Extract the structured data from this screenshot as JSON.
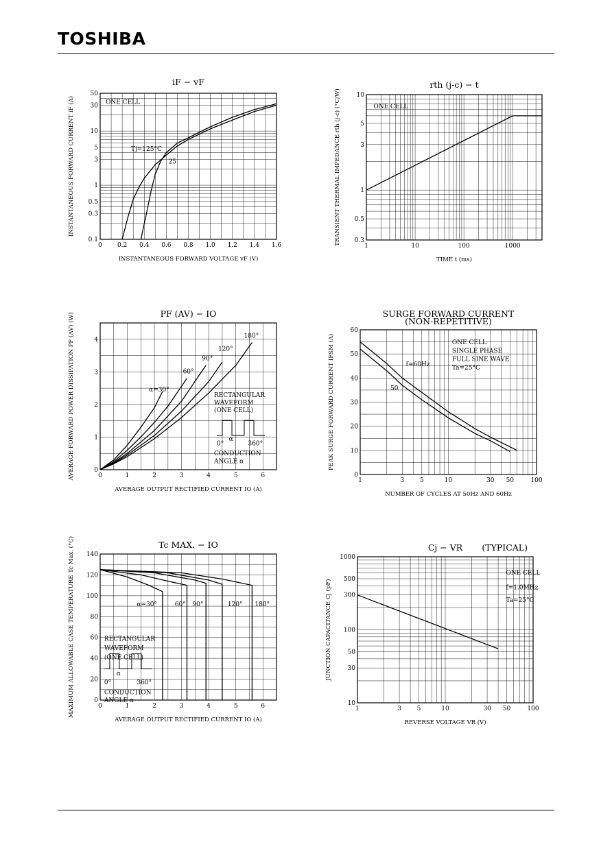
{
  "header": {
    "logo": "TOSHIBA"
  },
  "colors": {
    "ink": "#000000",
    "background": "#ffffff"
  },
  "chart_data": [
    {
      "id": "if-vf",
      "type": "line",
      "title": "iF − vF",
      "xlabel": "INSTANTANEOUS FORWARD VOLTAGE vF (V)",
      "ylabel": "INSTANTANEOUS FORWARD CURRENT iF (A)",
      "xlim": [
        0,
        1.6
      ],
      "ylim": [
        0.1,
        50
      ],
      "xscale": "linear",
      "yscale": "log",
      "xticks": [
        "0",
        "0.2",
        "0.4",
        "0.6",
        "0.8",
        "1.0",
        "1.2",
        "1.4",
        "1.6"
      ],
      "yticks": [
        "50",
        "30",
        "10",
        "5",
        "3",
        "1",
        "0.5",
        "0.3",
        "0.1"
      ],
      "grid": true,
      "annotations": [
        "ONE CELL",
        "Tj=125°C",
        "25"
      ],
      "series": [
        {
          "name": "Tj=125°C",
          "x": [
            0.2,
            0.25,
            0.3,
            0.35,
            0.4,
            0.5,
            0.6,
            0.7,
            0.8,
            1.0,
            1.2,
            1.4,
            1.6
          ],
          "y": [
            0.1,
            0.25,
            0.55,
            0.9,
            1.35,
            2.4,
            3.6,
            5.3,
            7.0,
            11,
            16,
            23,
            30
          ]
        },
        {
          "name": "25",
          "x": [
            0.37,
            0.42,
            0.46,
            0.5,
            0.55,
            0.6,
            0.7,
            0.8,
            1.0,
            1.2,
            1.4,
            1.6
          ],
          "y": [
            0.1,
            0.3,
            0.75,
            1.6,
            2.8,
            4.0,
            6.0,
            7.5,
            12,
            18,
            25,
            32
          ]
        }
      ]
    },
    {
      "id": "rth-t",
      "type": "line",
      "title": "rth (j-c) − t",
      "xlabel": "TIME t (ms)",
      "ylabel": "TRANSIENT THERMAL IMPEDANCE rth (j-c) (°C/W)",
      "xlim": [
        1,
        4000
      ],
      "ylim": [
        0.3,
        10
      ],
      "xscale": "log",
      "yscale": "log",
      "xticks": [
        "1",
        "10",
        "100",
        "1000"
      ],
      "yticks": [
        "10",
        "5",
        "3",
        "1",
        "0.5",
        "0.3"
      ],
      "grid": true,
      "annotations": [
        "ONE CELL"
      ],
      "series": [
        {
          "name": "",
          "x": [
            1,
            1000,
            4000
          ],
          "y": [
            1,
            6,
            6
          ]
        }
      ]
    },
    {
      "id": "pf-io",
      "type": "line",
      "title": "PF (AV) − IO",
      "xlabel": "AVERAGE OUTPUT RECTIFIED CURRENT IO (A)",
      "ylabel": "AVERAGE FORWARD POWER DISSIPATION PF (AV) (W)",
      "xlim": [
        0,
        6.5
      ],
      "ylim": [
        0,
        4.5
      ],
      "xscale": "linear",
      "yscale": "linear",
      "xticks": [
        "0",
        "1",
        "2",
        "3",
        "4",
        "5",
        "6"
      ],
      "yticks": [
        "0",
        "1",
        "2",
        "3",
        "4"
      ],
      "grid": true,
      "annotations": [
        "RECTANGULAR",
        "WAVEFORM",
        "(ONE CELL)",
        "0°",
        "α",
        "360°",
        "CONDUCTION",
        "ANGLE α"
      ],
      "series": [
        {
          "name": "α=30°",
          "x": [
            0,
            0.5,
            1,
            1.5,
            2,
            2.3
          ],
          "y": [
            0,
            0.3,
            0.75,
            1.3,
            1.9,
            2.4
          ]
        },
        {
          "name": "60°",
          "x": [
            0,
            0.5,
            1,
            1.5,
            2,
            2.5,
            3.2
          ],
          "y": [
            0,
            0.25,
            0.6,
            1.0,
            1.45,
            1.95,
            2.8
          ]
        },
        {
          "name": "90°",
          "x": [
            0,
            0.5,
            1,
            2,
            3,
            3.9
          ],
          "y": [
            0,
            0.22,
            0.5,
            1.2,
            2.1,
            3.2
          ]
        },
        {
          "name": "120°",
          "x": [
            0,
            0.5,
            1,
            2,
            3,
            4,
            4.5
          ],
          "y": [
            0,
            0.2,
            0.45,
            1.05,
            1.8,
            2.7,
            3.3
          ]
        },
        {
          "name": "180°",
          "x": [
            0,
            0.5,
            1,
            2,
            3,
            4,
            5,
            5.6
          ],
          "y": [
            0,
            0.18,
            0.4,
            0.95,
            1.6,
            2.35,
            3.2,
            3.9
          ]
        }
      ]
    },
    {
      "id": "ifsm",
      "type": "line",
      "title": "SURGE FORWARD CURRENT",
      "subtitle": "(NON-REPETITIVE)",
      "xlabel": "NUMBER OF CYCLES AT 50Hz AND 60Hz",
      "ylabel": "PEAK SURGE FORWARD CURRENT IFSM (A)",
      "xlim": [
        1,
        100
      ],
      "ylim": [
        0,
        60
      ],
      "xscale": "log",
      "yscale": "linear",
      "xticks": [
        "1",
        "3",
        "5",
        "10",
        "30",
        "50",
        "100"
      ],
      "yticks": [
        "60",
        "50",
        "40",
        "30",
        "20",
        "10",
        "0"
      ],
      "grid": true,
      "annotations": [
        "ONE CELL",
        "SINGLE PHASE",
        "FULL SINE WAVE",
        "Ta=25°C",
        "f=60Hz",
        "50"
      ],
      "series": [
        {
          "name": "f=60Hz",
          "x": [
            1,
            2,
            3,
            5,
            10,
            20,
            30,
            60
          ],
          "y": [
            55,
            46,
            40,
            34,
            26,
            19,
            15.5,
            10
          ]
        },
        {
          "name": "50",
          "x": [
            1,
            2,
            3,
            5,
            10,
            20,
            30,
            50
          ],
          "y": [
            52,
            43,
            37,
            31,
            23.5,
            17,
            14,
            9.5
          ]
        }
      ]
    },
    {
      "id": "tc-io",
      "type": "line",
      "title": "Tc MAX. − IO",
      "xlabel": "AVERAGE OUTPUT RECTIFIED CURRENT IO (A)",
      "ylabel": "MAXIMUM ALLOWABLE CASE TEMPERATURE Tc Max. (°C)",
      "xlim": [
        0,
        6.5
      ],
      "ylim": [
        0,
        140
      ],
      "xscale": "linear",
      "yscale": "linear",
      "xticks": [
        "0",
        "1",
        "2",
        "3",
        "4",
        "5",
        "6"
      ],
      "yticks": [
        "140",
        "120",
        "100",
        "80",
        "60",
        "40",
        "20",
        "0"
      ],
      "grid": true,
      "annotations": [
        "RECTANGULAR",
        "WAVEFORM",
        "(ONE CELL)",
        "0°",
        "α",
        "360°",
        "CONDUCTION",
        "ANGLE α"
      ],
      "series": [
        {
          "name": "α=30°",
          "x": [
            0,
            1,
            1.8,
            2.3,
            2.3
          ],
          "y": [
            125,
            118,
            110,
            104,
            0
          ]
        },
        {
          "name": "60°",
          "x": [
            0,
            1.5,
            2.5,
            3.2,
            3.2
          ],
          "y": [
            125,
            120,
            114,
            110,
            0
          ]
        },
        {
          "name": "90°",
          "x": [
            0,
            2,
            3.5,
            3.9,
            3.9
          ],
          "y": [
            125,
            122,
            115,
            112,
            0
          ]
        },
        {
          "name": "120°",
          "x": [
            0,
            2.5,
            4,
            4.5,
            4.5
          ],
          "y": [
            125,
            122,
            115,
            111,
            0
          ]
        },
        {
          "name": "180°",
          "x": [
            0,
            3,
            4.5,
            5.6,
            5.6
          ],
          "y": [
            125,
            122,
            116,
            110,
            0
          ]
        }
      ]
    },
    {
      "id": "cj-vr",
      "type": "line",
      "title": "Cj − VR",
      "subtitle": "(TYPICAL)",
      "xlabel": "REVERSE VOLTAGE VR (V)",
      "ylabel": "JUNCTION CAPACITANCE Cj (pF)",
      "xlim": [
        1,
        100
      ],
      "ylim": [
        10,
        1000
      ],
      "xscale": "log",
      "yscale": "log",
      "xticks": [
        "1",
        "3",
        "5",
        "10",
        "30",
        "50",
        "100"
      ],
      "yticks": [
        "1000",
        "500",
        "300",
        "100",
        "50",
        "30",
        "10"
      ],
      "grid": true,
      "annotations": [
        "ONE CELL",
        "f=1.0MHz",
        "Ta=25°C"
      ],
      "series": [
        {
          "name": "",
          "x": [
            1,
            40
          ],
          "y": [
            300,
            55
          ]
        }
      ]
    }
  ]
}
